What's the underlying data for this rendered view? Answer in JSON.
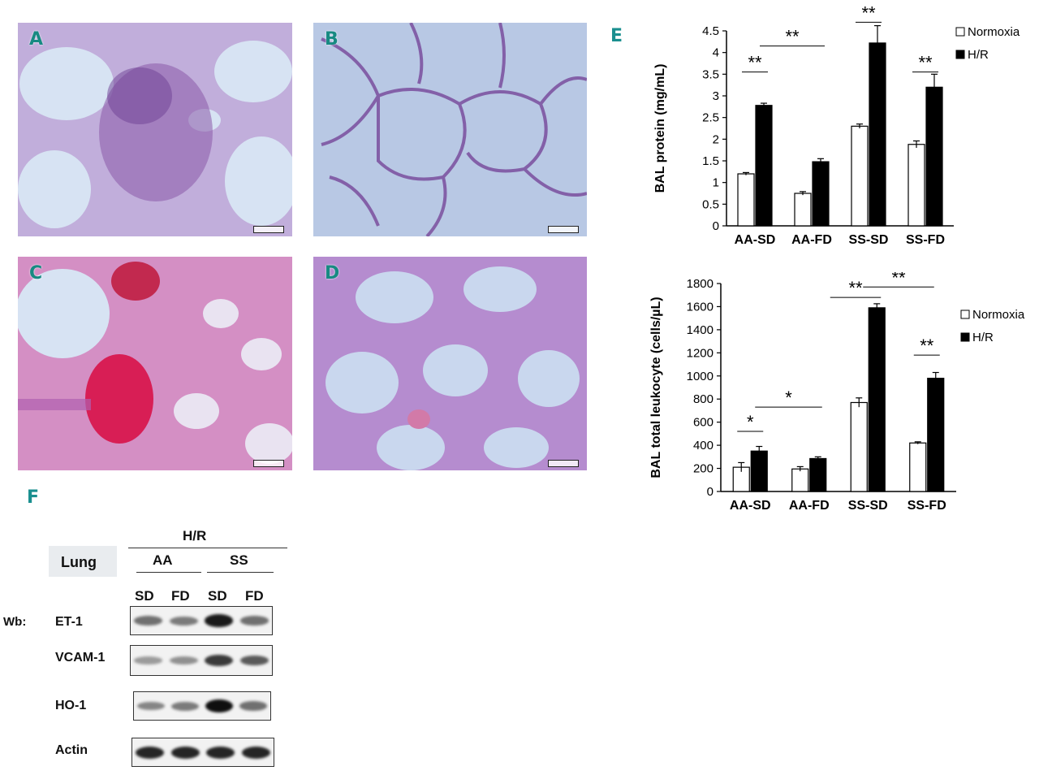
{
  "panels": {
    "micrographs": [
      "A",
      "B",
      "C",
      "D"
    ],
    "letter_E": "E",
    "letter_F": "F"
  },
  "chart_data": [
    {
      "type": "bar",
      "ylabel": "BAL  protein (mg/mL)",
      "categories": [
        "AA-SD",
        "AA-FD",
        "SS-SD",
        "SS-FD"
      ],
      "ylim": [
        0,
        4.5
      ],
      "yticks": [
        0,
        0.5,
        1,
        1.5,
        2,
        2.5,
        3,
        3.5,
        4,
        4.5
      ],
      "legend_position": "top-right",
      "series": [
        {
          "name": "Normoxia",
          "color": "#ffffff",
          "values": [
            1.2,
            0.75,
            2.3,
            1.88
          ],
          "errors": [
            0.03,
            0.04,
            0.05,
            0.08
          ]
        },
        {
          "name": "H/R",
          "color": "#000000",
          "values": [
            2.78,
            1.48,
            4.22,
            3.2
          ],
          "errors": [
            0.05,
            0.07,
            0.4,
            0.3
          ]
        }
      ],
      "significance": [
        "**",
        "**",
        "**",
        "**"
      ]
    },
    {
      "type": "bar",
      "ylabel": "BAL total leukocyte (cells/µL)",
      "categories": [
        "AA-SD",
        "AA-FD",
        "SS-SD",
        "SS-FD"
      ],
      "ylim": [
        0,
        1800
      ],
      "yticks": [
        0,
        200,
        400,
        600,
        800,
        1000,
        1200,
        1400,
        1600,
        1800
      ],
      "legend_position": "right",
      "series": [
        {
          "name": "Normoxia",
          "color": "#ffffff",
          "values": [
            210,
            195,
            770,
            420
          ],
          "errors": [
            40,
            20,
            40,
            10
          ]
        },
        {
          "name": "H/R",
          "color": "#000000",
          "values": [
            350,
            285,
            1590,
            980
          ],
          "errors": [
            40,
            15,
            35,
            50
          ]
        }
      ],
      "significance": [
        "*",
        "*",
        "**",
        "**",
        "**"
      ]
    }
  ],
  "western_blot": {
    "condition": "H/R",
    "tissue": "Lung",
    "groups": [
      "AA",
      "SS"
    ],
    "lanes": [
      "SD",
      "FD",
      "SD",
      "FD"
    ],
    "wb_prefix": "Wb:",
    "proteins": [
      "ET-1",
      "VCAM-1",
      "HO-1",
      "Actin"
    ],
    "band_intensity": {
      "ET-1": [
        0.55,
        0.5,
        0.95,
        0.55
      ],
      "VCAM-1": [
        0.35,
        0.4,
        0.8,
        0.65
      ],
      "HO-1": [
        0.45,
        0.5,
        1.0,
        0.55
      ],
      "Actin": [
        0.9,
        0.9,
        0.9,
        0.9
      ]
    }
  }
}
